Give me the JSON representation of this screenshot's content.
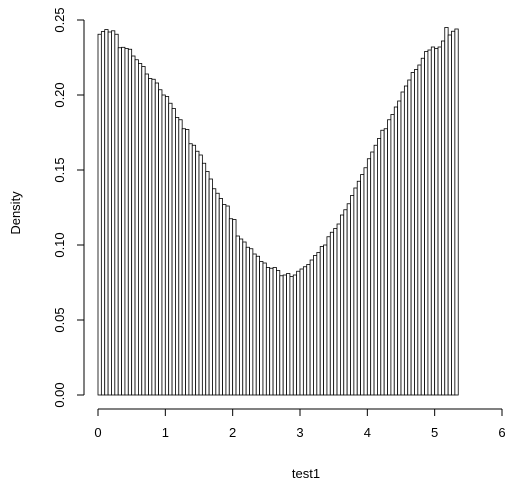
{
  "chart_data": {
    "type": "bar",
    "xlabel": "test1",
    "ylabel": "Density",
    "xlim": [
      0,
      6.2832
    ],
    "ylim": [
      0,
      0.25
    ],
    "bin_width": 0.05,
    "x_ticks": [
      0,
      1,
      2,
      3,
      4,
      5,
      6
    ],
    "y_ticks": [
      0.0,
      0.05,
      0.1,
      0.15,
      0.2,
      0.25
    ],
    "y_tick_labels": [
      "0.00",
      "0.05",
      "0.10",
      "0.15",
      "0.20",
      "0.25"
    ],
    "grid": false,
    "bar_fill": "#ffffff",
    "bar_stroke": "#000000",
    "values": [
      0.2405,
      0.2423,
      0.2436,
      0.242,
      0.2428,
      0.2405,
      0.2315,
      0.2318,
      0.231,
      0.2305,
      0.226,
      0.2235,
      0.221,
      0.219,
      0.214,
      0.211,
      0.2105,
      0.208,
      0.2035,
      0.2,
      0.199,
      0.1945,
      0.191,
      0.185,
      0.1835,
      0.1775,
      0.177,
      0.1675,
      0.1665,
      0.1625,
      0.16,
      0.1545,
      0.149,
      0.144,
      0.1375,
      0.1345,
      0.131,
      0.127,
      0.126,
      0.1175,
      0.117,
      0.106,
      0.104,
      0.102,
      0.0985,
      0.0975,
      0.094,
      0.0925,
      0.089,
      0.088,
      0.085,
      0.0845,
      0.085,
      0.083,
      0.0795,
      0.08,
      0.081,
      0.079,
      0.08,
      0.0825,
      0.084,
      0.0855,
      0.087,
      0.09,
      0.093,
      0.095,
      0.099,
      0.1,
      0.1055,
      0.1085,
      0.111,
      0.114,
      0.12,
      0.1235,
      0.1275,
      0.133,
      0.138,
      0.1425,
      0.147,
      0.1515,
      0.1575,
      0.162,
      0.1665,
      0.171,
      0.1765,
      0.1775,
      0.1835,
      0.187,
      0.192,
      0.196,
      0.202,
      0.206,
      0.21,
      0.215,
      0.217,
      0.22,
      0.2245,
      0.229,
      0.23,
      0.232,
      0.231,
      0.232,
      0.236,
      0.245,
      0.24,
      0.2425,
      0.244
    ]
  }
}
